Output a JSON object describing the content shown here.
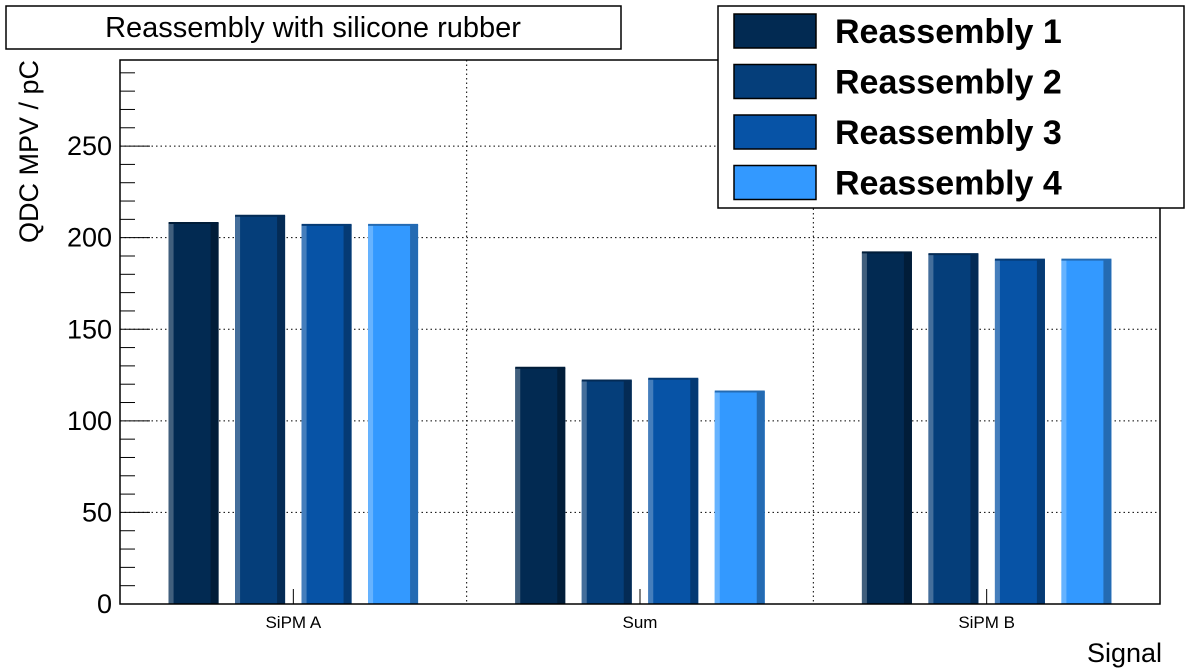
{
  "chart_data": {
    "type": "bar",
    "title": "Reassembly with silicone rubber",
    "xlabel": "Signal",
    "ylabel": "QDC MPV / pC",
    "categories": [
      "SiPM A",
      "Sum",
      "SiPM B"
    ],
    "ylim": [
      0,
      297
    ],
    "yticks": [
      0,
      50,
      100,
      150,
      200,
      250
    ],
    "grid": true,
    "legend_position": "top-right",
    "series": [
      {
        "name": "Reassembly 1",
        "color": "#022a52",
        "values": [
          208,
          129,
          192
        ]
      },
      {
        "name": "Reassembly 2",
        "color": "#053e7a",
        "values": [
          212,
          122,
          191
        ]
      },
      {
        "name": "Reassembly 3",
        "color": "#0753a6",
        "values": [
          207,
          123,
          188
        ]
      },
      {
        "name": "Reassembly 4",
        "color": "#3399ff",
        "values": [
          207,
          116,
          188
        ]
      }
    ]
  }
}
